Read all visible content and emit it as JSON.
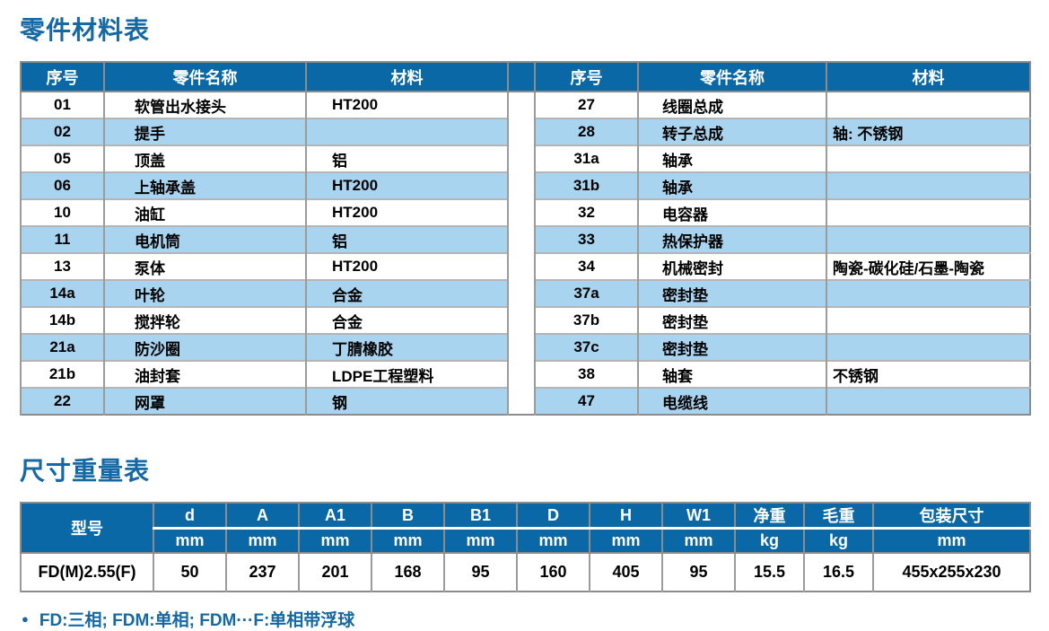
{
  "sections": {
    "parts": {
      "title": "零件材料表",
      "headers": [
        "序号",
        "零件名称",
        "材料"
      ],
      "left_rows": [
        {
          "no": "01",
          "name": "软管出水接头",
          "material": "HT200"
        },
        {
          "no": "02",
          "name": "提手",
          "material": ""
        },
        {
          "no": "05",
          "name": "顶盖",
          "material": "铝"
        },
        {
          "no": "06",
          "name": "上轴承盖",
          "material": "HT200"
        },
        {
          "no": "10",
          "name": "油缸",
          "material": "HT200"
        },
        {
          "no": "11",
          "name": "电机筒",
          "material": "铝"
        },
        {
          "no": "13",
          "name": "泵体",
          "material": "HT200"
        },
        {
          "no": "14a",
          "name": "叶轮",
          "material": "合金"
        },
        {
          "no": "14b",
          "name": "搅拌轮",
          "material": "合金"
        },
        {
          "no": "21a",
          "name": "防沙圈",
          "material": "丁腈橡胶"
        },
        {
          "no": "21b",
          "name": "油封套",
          "material": "LDPE工程塑料"
        },
        {
          "no": "22",
          "name": "网罩",
          "material": "钢"
        }
      ],
      "right_rows": [
        {
          "no": "27",
          "name": "线圈总成",
          "material": ""
        },
        {
          "no": "28",
          "name": "转子总成",
          "material": "轴: 不锈钢"
        },
        {
          "no": "31a",
          "name": "轴承",
          "material": ""
        },
        {
          "no": "31b",
          "name": "轴承",
          "material": ""
        },
        {
          "no": "32",
          "name": "电容器",
          "material": ""
        },
        {
          "no": "33",
          "name": "热保护器",
          "material": ""
        },
        {
          "no": "34",
          "name": "机械密封",
          "material": "陶瓷-碳化硅/石墨-陶瓷"
        },
        {
          "no": "37a",
          "name": "密封垫",
          "material": ""
        },
        {
          "no": "37b",
          "name": "密封垫",
          "material": ""
        },
        {
          "no": "37c",
          "name": "密封垫",
          "material": ""
        },
        {
          "no": "38",
          "name": "轴套",
          "material": "不锈钢"
        },
        {
          "no": "47",
          "name": "电缆线",
          "material": ""
        }
      ]
    },
    "dimensions": {
      "title": "尺寸重量表",
      "model_header": "型号",
      "columns": [
        {
          "label": "d",
          "unit": "mm"
        },
        {
          "label": "A",
          "unit": "mm"
        },
        {
          "label": "A1",
          "unit": "mm"
        },
        {
          "label": "B",
          "unit": "mm"
        },
        {
          "label": "B1",
          "unit": "mm"
        },
        {
          "label": "D",
          "unit": "mm"
        },
        {
          "label": "H",
          "unit": "mm"
        },
        {
          "label": "W1",
          "unit": "mm"
        },
        {
          "label": "净重",
          "unit": "kg"
        },
        {
          "label": "毛重",
          "unit": "kg"
        },
        {
          "label": "包装尺寸",
          "unit": "mm"
        }
      ],
      "rows": [
        {
          "model": "FD(M)2.55(F)",
          "values": [
            "50",
            "237",
            "201",
            "168",
            "95",
            "160",
            "405",
            "95",
            "15.5",
            "16.5",
            "455x255x230"
          ]
        }
      ]
    }
  },
  "footnote": {
    "bullet": "●",
    "text": "FD:三相; FDM:单相; FDM···F:单相带浮球"
  },
  "colors": {
    "header_blue": "#0A68A6",
    "row_blue": "#A9D4EF",
    "title_blue": "#1568A3",
    "border_gray": "#8C8C8C"
  }
}
